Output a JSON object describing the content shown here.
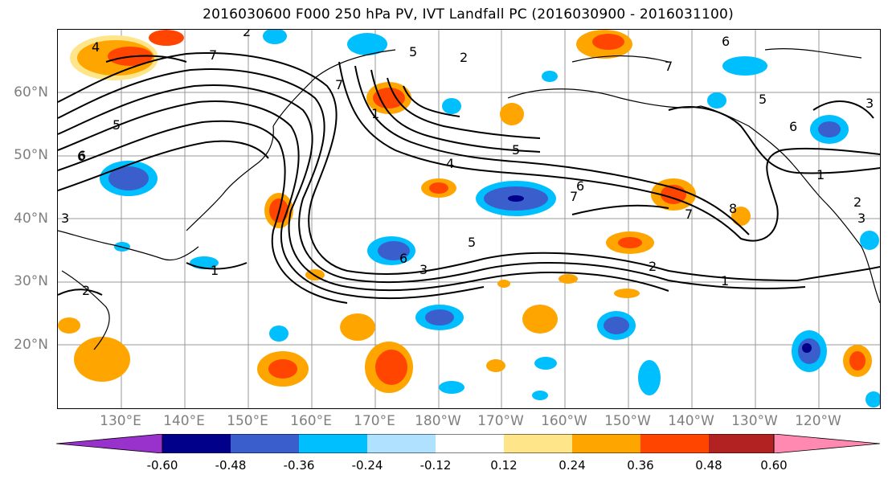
{
  "title": "2016030600 F000 250 hPa PV, IVT Landfall PC (2016030900 - 2016031100)",
  "lat_labels": [
    "60°N",
    "50°N",
    "40°N",
    "30°N",
    "20°N"
  ],
  "lon_labels": [
    "130°E",
    "140°E",
    "150°E",
    "160°E",
    "170°E",
    "180°W",
    "170°W",
    "160°W",
    "150°W",
    "140°W",
    "130°W",
    "120°W"
  ],
  "contour_labels": [
    "4",
    "6",
    "7",
    "5",
    "6",
    "3",
    "5",
    "1",
    "2",
    "7",
    "3",
    "2",
    "4",
    "5",
    "6",
    "7",
    "5",
    "3",
    "1",
    "2",
    "6",
    "7",
    "8",
    "1",
    "5",
    "6",
    "7",
    "1",
    "2",
    "3",
    "6",
    "2"
  ],
  "colorbar": {
    "ticks": [
      "-0.60",
      "-0.48",
      "-0.36",
      "-0.24",
      "-0.12",
      "0.12",
      "0.24",
      "0.36",
      "0.48",
      "0.60"
    ],
    "colors": [
      "#9932cc",
      "#00008b",
      "#3a5fcd",
      "#00bfff",
      "#b0e2ff",
      "#ffffff",
      "#ffe58a",
      "#ffa500",
      "#ff4500",
      "#b22222",
      "#ff89b0"
    ]
  }
}
